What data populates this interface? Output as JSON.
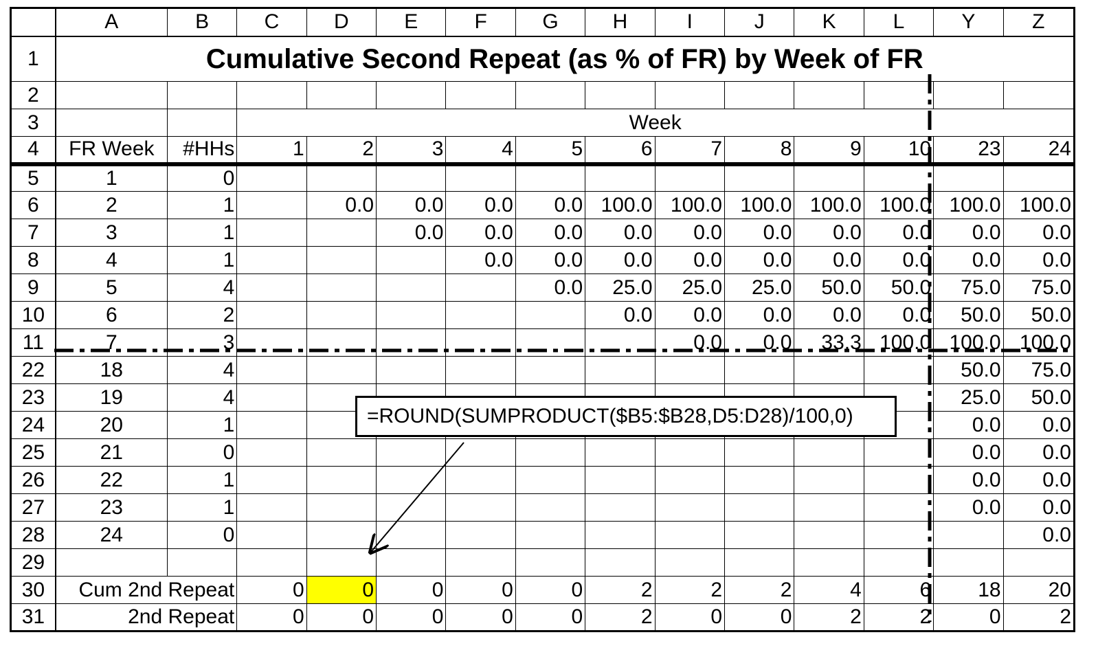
{
  "columns": [
    "A",
    "B",
    "C",
    "D",
    "E",
    "F",
    "G",
    "H",
    "I",
    "J",
    "K",
    "L",
    "Y",
    "Z"
  ],
  "title": "Cumulative Second Repeat (as % of FR) by Week of FR",
  "week_label": "Week",
  "header_row": {
    "row": "4",
    "a": "FR Week",
    "b": "#HHs",
    "weeks": [
      "1",
      "2",
      "3",
      "4",
      "5",
      "6",
      "7",
      "8",
      "9",
      "10",
      "23",
      "24"
    ]
  },
  "blank_rows": [
    "2",
    "29"
  ],
  "data_rows": [
    {
      "row": "5",
      "fr": "1",
      "hh": "0",
      "vals": [
        "",
        "",
        "",
        "",
        "",
        "",
        "",
        "",
        "",
        "",
        "",
        ""
      ]
    },
    {
      "row": "6",
      "fr": "2",
      "hh": "1",
      "vals": [
        "",
        "0.0",
        "0.0",
        "0.0",
        "0.0",
        "100.0",
        "100.0",
        "100.0",
        "100.0",
        "100.0",
        "100.0",
        "100.0"
      ]
    },
    {
      "row": "7",
      "fr": "3",
      "hh": "1",
      "vals": [
        "",
        "",
        "0.0",
        "0.0",
        "0.0",
        "0.0",
        "0.0",
        "0.0",
        "0.0",
        "0.0",
        "0.0",
        "0.0"
      ]
    },
    {
      "row": "8",
      "fr": "4",
      "hh": "1",
      "vals": [
        "",
        "",
        "",
        "0.0",
        "0.0",
        "0.0",
        "0.0",
        "0.0",
        "0.0",
        "0.0",
        "0.0",
        "0.0"
      ]
    },
    {
      "row": "9",
      "fr": "5",
      "hh": "4",
      "vals": [
        "",
        "",
        "",
        "",
        "0.0",
        "25.0",
        "25.0",
        "25.0",
        "50.0",
        "50.0",
        "75.0",
        "75.0"
      ]
    },
    {
      "row": "10",
      "fr": "6",
      "hh": "2",
      "vals": [
        "",
        "",
        "",
        "",
        "",
        "0.0",
        "0.0",
        "0.0",
        "0.0",
        "0.0",
        "50.0",
        "50.0"
      ]
    },
    {
      "row": "11",
      "fr": "7",
      "hh": "3",
      "vals": [
        "",
        "",
        "",
        "",
        "",
        "",
        "0.0",
        "0.0",
        "33.3",
        "100.0",
        "100.0",
        "100.0"
      ]
    },
    {
      "row": "22",
      "fr": "18",
      "hh": "4",
      "vals": [
        "",
        "",
        "",
        "",
        "",
        "",
        "",
        "",
        "",
        "",
        "50.0",
        "75.0"
      ]
    },
    {
      "row": "23",
      "fr": "19",
      "hh": "4",
      "vals": [
        "",
        "",
        "",
        "",
        "",
        "",
        "",
        "",
        "",
        "",
        "25.0",
        "50.0"
      ]
    },
    {
      "row": "24",
      "fr": "20",
      "hh": "1",
      "vals": [
        "",
        "",
        "",
        "",
        "",
        "",
        "",
        "",
        "",
        "",
        "0.0",
        "0.0"
      ]
    },
    {
      "row": "25",
      "fr": "21",
      "hh": "0",
      "vals": [
        "",
        "",
        "",
        "",
        "",
        "",
        "",
        "",
        "",
        "",
        "0.0",
        "0.0"
      ]
    },
    {
      "row": "26",
      "fr": "22",
      "hh": "1",
      "vals": [
        "",
        "",
        "",
        "",
        "",
        "",
        "",
        "",
        "",
        "",
        "0.0",
        "0.0"
      ]
    },
    {
      "row": "27",
      "fr": "23",
      "hh": "1",
      "vals": [
        "",
        "",
        "",
        "",
        "",
        "",
        "",
        "",
        "",
        "",
        "0.0",
        "0.0"
      ]
    },
    {
      "row": "28",
      "fr": "24",
      "hh": "0",
      "vals": [
        "",
        "",
        "",
        "",
        "",
        "",
        "",
        "",
        "",
        "",
        "",
        "0.0"
      ]
    }
  ],
  "summary_rows": [
    {
      "row": "30",
      "label": "Cum 2nd Repeat",
      "vals": [
        "0",
        "0",
        "0",
        "0",
        "0",
        "2",
        "2",
        "2",
        "4",
        "6",
        "18",
        "20"
      ]
    },
    {
      "row": "31",
      "label": "2nd Repeat",
      "vals": [
        "0",
        "0",
        "0",
        "0",
        "0",
        "2",
        "0",
        "0",
        "2",
        "2",
        "0",
        "2"
      ]
    }
  ],
  "highlight_color": "#ffff00",
  "callout_formula": "=ROUND(SUMPRODUCT($B5:$B28,D5:D28)/100,0)"
}
